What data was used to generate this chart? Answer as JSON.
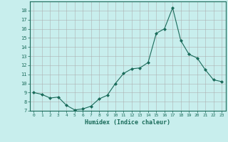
{
  "x": [
    0,
    1,
    2,
    3,
    4,
    5,
    6,
    7,
    8,
    9,
    10,
    11,
    12,
    13,
    14,
    15,
    16,
    17,
    18,
    19,
    20,
    21,
    22,
    23
  ],
  "y": [
    9.0,
    8.8,
    8.4,
    8.5,
    7.6,
    7.1,
    7.2,
    7.5,
    8.3,
    8.7,
    10.0,
    11.1,
    11.6,
    11.7,
    12.3,
    15.5,
    16.0,
    18.3,
    14.7,
    13.2,
    12.8,
    11.5,
    10.4,
    10.2
  ],
  "xlabel": "Humidex (Indice chaleur)",
  "xlim": [
    -0.5,
    23.5
  ],
  "ylim": [
    7,
    19
  ],
  "yticks": [
    7,
    8,
    9,
    10,
    11,
    12,
    13,
    14,
    15,
    16,
    17,
    18
  ],
  "xticks": [
    0,
    1,
    2,
    3,
    4,
    5,
    6,
    7,
    8,
    9,
    10,
    11,
    12,
    13,
    14,
    15,
    16,
    17,
    18,
    19,
    20,
    21,
    22,
    23
  ],
  "line_color": "#1a6b5a",
  "marker_color": "#1a6b5a",
  "bg_color": "#c8eeed",
  "grid_color": "#aaaaaa",
  "axis_color": "#1a6b5a",
  "tick_label_color": "#1a6b5a",
  "xlabel_color": "#1a6b5a"
}
